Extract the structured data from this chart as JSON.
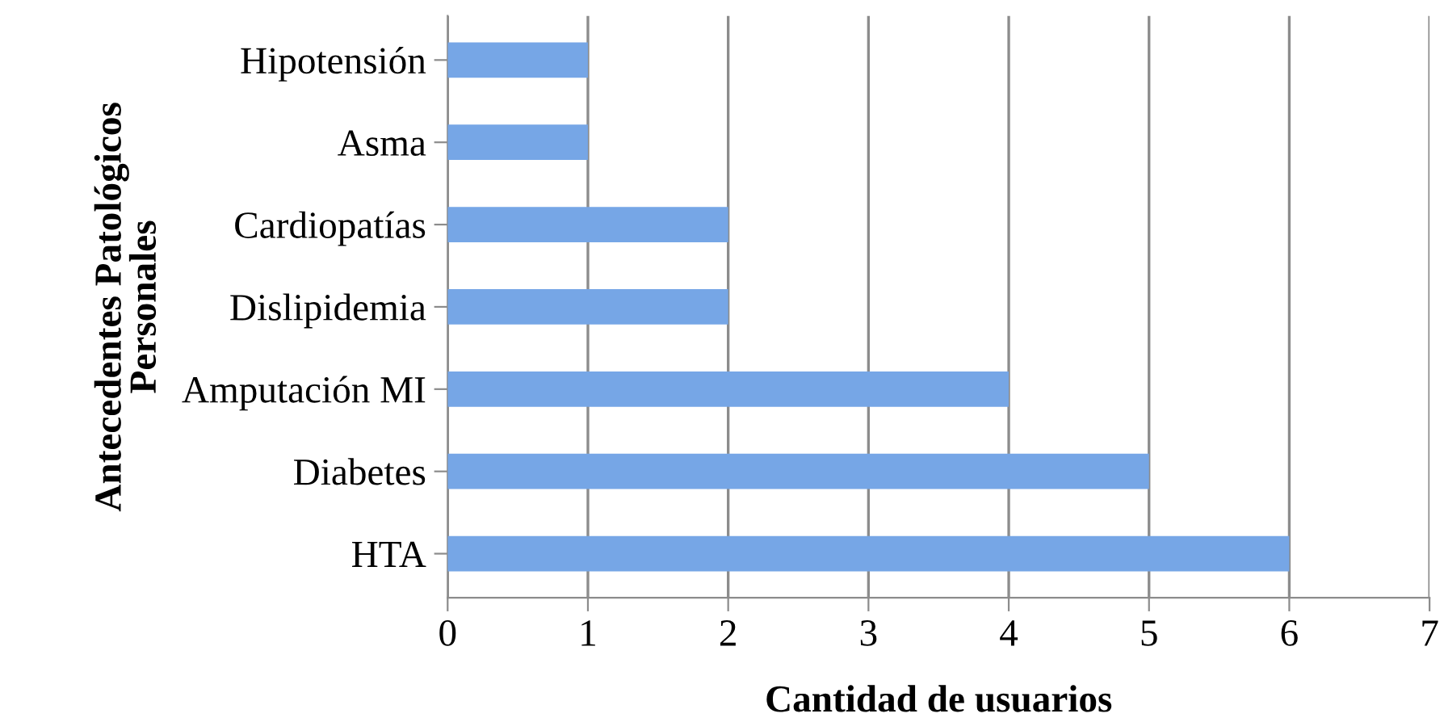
{
  "chart_data": {
    "type": "bar",
    "orientation": "horizontal",
    "categories": [
      "Hipotensión",
      "Asma",
      "Cardiopatías",
      "Dislipidemia",
      "Amputación MI",
      "Diabetes",
      "HTA"
    ],
    "values": [
      1,
      1,
      2,
      2,
      4,
      5,
      6
    ],
    "color": "#76a6e6",
    "xlabel": "Cantidad de usuarios",
    "ylabel": "Antecedentes Patológicos\nPersonales",
    "xlim": [
      0,
      7
    ],
    "xticks": [
      0,
      1,
      2,
      3,
      4,
      5,
      6,
      7
    ],
    "grid": "x"
  }
}
